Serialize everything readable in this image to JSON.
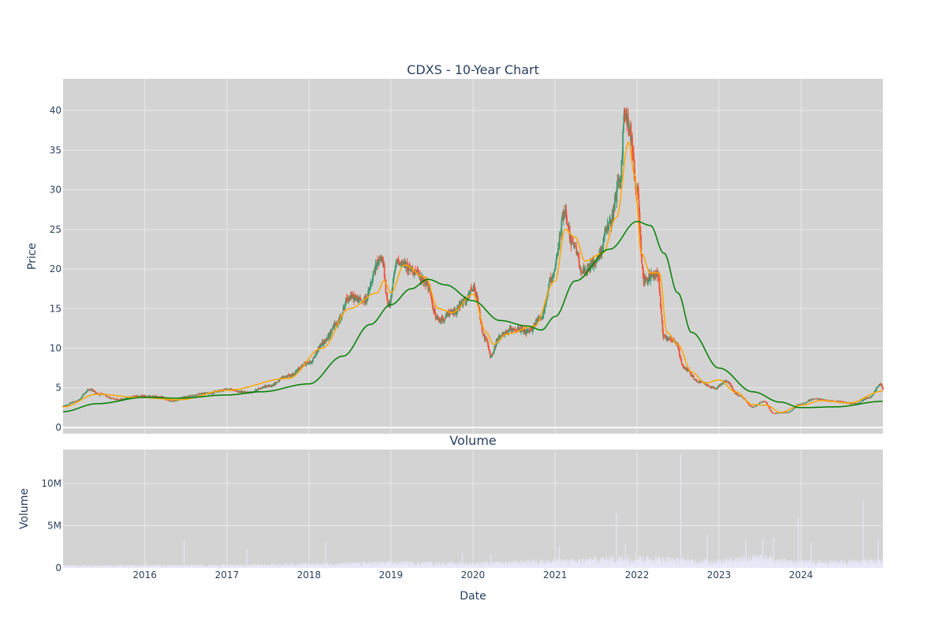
{
  "chart_data": [
    {
      "type": "candlestick",
      "title": "CDXS - 10-Year Chart",
      "xlabel": "",
      "ylabel": "Price",
      "xlim": [
        "2015-01-02",
        "2024-12-31"
      ],
      "ylim": [
        -0.8,
        44
      ],
      "yticks": [
        0,
        5,
        10,
        15,
        20,
        25,
        30,
        35,
        40
      ],
      "grid": true,
      "background": "#d3d3d3",
      "colors": {
        "up": "#3d9970",
        "down": "#ef553b",
        "ma_short": "#ffa500",
        "ma_long": "#008000"
      },
      "price_anchors": [
        [
          "2015-01-02",
          2.7
        ],
        [
          "2015-03-01",
          3.3
        ],
        [
          "2015-05-01",
          4.8
        ],
        [
          "2015-06-15",
          4.2
        ],
        [
          "2015-09-01",
          3.5
        ],
        [
          "2015-12-01",
          4.0
        ],
        [
          "2016-03-01",
          3.9
        ],
        [
          "2016-05-01",
          3.3
        ],
        [
          "2016-07-01",
          3.9
        ],
        [
          "2016-10-01",
          4.3
        ],
        [
          "2017-01-01",
          4.8
        ],
        [
          "2017-04-01",
          4.4
        ],
        [
          "2017-07-01",
          5.2
        ],
        [
          "2017-10-01",
          6.5
        ],
        [
          "2018-01-01",
          8.2
        ],
        [
          "2018-03-10",
          10.8
        ],
        [
          "2018-05-01",
          13.0
        ],
        [
          "2018-07-01",
          16.5
        ],
        [
          "2018-09-01",
          16.0
        ],
        [
          "2018-11-20",
          21.5
        ],
        [
          "2018-12-20",
          15.5
        ],
        [
          "2019-02-01",
          21.0
        ],
        [
          "2019-04-01",
          20.0
        ],
        [
          "2019-06-01",
          18.5
        ],
        [
          "2019-08-01",
          13.5
        ],
        [
          "2019-10-01",
          14.5
        ],
        [
          "2019-12-01",
          16.0
        ],
        [
          "2020-01-01",
          17.5
        ],
        [
          "2020-03-01",
          11.0
        ],
        [
          "2020-03-20",
          9.0
        ],
        [
          "2020-05-01",
          11.5
        ],
        [
          "2020-07-01",
          12.5
        ],
        [
          "2020-09-01",
          12.0
        ],
        [
          "2020-11-01",
          14.0
        ],
        [
          "2020-12-15",
          18.5
        ],
        [
          "2021-02-15",
          27.0
        ],
        [
          "2021-03-20",
          23.0
        ],
        [
          "2021-05-10",
          19.5
        ],
        [
          "2021-07-01",
          21.0
        ],
        [
          "2021-09-01",
          25.5
        ],
        [
          "2021-10-15",
          31.0
        ],
        [
          "2021-11-10",
          40.0
        ],
        [
          "2021-12-01",
          37.0
        ],
        [
          "2021-12-31",
          30.0
        ],
        [
          "2022-02-01",
          18.5
        ],
        [
          "2022-03-01",
          19.0
        ],
        [
          "2022-04-01",
          19.5
        ],
        [
          "2022-05-01",
          11.5
        ],
        [
          "2022-06-15",
          11.0
        ],
        [
          "2022-08-01",
          7.5
        ],
        [
          "2022-10-01",
          5.8
        ],
        [
          "2022-12-15",
          5.0
        ],
        [
          "2023-02-01",
          5.8
        ],
        [
          "2023-04-01",
          4.0
        ],
        [
          "2023-06-01",
          2.6
        ],
        [
          "2023-07-20",
          3.3
        ],
        [
          "2023-09-01",
          1.8
        ],
        [
          "2023-11-01",
          1.9
        ],
        [
          "2024-01-01",
          3.0
        ],
        [
          "2024-03-01",
          3.6
        ],
        [
          "2024-06-01",
          3.3
        ],
        [
          "2024-09-01",
          3.0
        ],
        [
          "2024-11-01",
          3.8
        ],
        [
          "2024-12-20",
          5.5
        ],
        [
          "2024-12-31",
          4.8
        ]
      ],
      "ma_short_anchors": [
        [
          "2015-01-02",
          2.6
        ],
        [
          "2015-06-01",
          4.2
        ],
        [
          "2015-12-01",
          3.8
        ],
        [
          "2016-06-01",
          3.5
        ],
        [
          "2017-01-01",
          4.7
        ],
        [
          "2017-10-01",
          6.2
        ],
        [
          "2018-03-01",
          10.0
        ],
        [
          "2018-07-01",
          15.0
        ],
        [
          "2018-11-01",
          17.0
        ],
        [
          "2018-12-01",
          18.5
        ],
        [
          "2019-01-01",
          17.0
        ],
        [
          "2019-03-01",
          20.5
        ],
        [
          "2019-06-01",
          19.0
        ],
        [
          "2019-08-01",
          15.0
        ],
        [
          "2019-10-01",
          14.5
        ],
        [
          "2020-01-01",
          16.8
        ],
        [
          "2020-03-01",
          12.0
        ],
        [
          "2020-04-01",
          10.5
        ],
        [
          "2020-06-01",
          11.8
        ],
        [
          "2020-10-01",
          12.8
        ],
        [
          "2021-01-01",
          18.5
        ],
        [
          "2021-02-15",
          25.0
        ],
        [
          "2021-04-01",
          24.0
        ],
        [
          "2021-05-15",
          21.0
        ],
        [
          "2021-08-01",
          22.0
        ],
        [
          "2021-10-01",
          26.5
        ],
        [
          "2021-11-25",
          36.0
        ],
        [
          "2021-12-20",
          32.0
        ],
        [
          "2022-01-20",
          22.0
        ],
        [
          "2022-03-01",
          19.5
        ],
        [
          "2022-04-10",
          19.5
        ],
        [
          "2022-05-15",
          12.0
        ],
        [
          "2022-07-01",
          10.5
        ],
        [
          "2022-09-01",
          7.0
        ],
        [
          "2022-11-01",
          5.6
        ],
        [
          "2023-01-01",
          6.0
        ],
        [
          "2023-03-15",
          4.5
        ],
        [
          "2023-06-01",
          2.9
        ],
        [
          "2023-08-01",
          2.8
        ],
        [
          "2023-10-01",
          1.9
        ],
        [
          "2024-01-01",
          2.8
        ],
        [
          "2024-04-01",
          3.4
        ],
        [
          "2024-08-01",
          3.1
        ],
        [
          "2024-12-31",
          4.6
        ]
      ],
      "ma_long_anchors": [
        [
          "2015-01-02",
          2.0
        ],
        [
          "2015-06-01",
          3.0
        ],
        [
          "2016-01-01",
          3.8
        ],
        [
          "2016-06-01",
          3.7
        ],
        [
          "2017-01-01",
          4.1
        ],
        [
          "2017-06-01",
          4.5
        ],
        [
          "2018-01-01",
          5.5
        ],
        [
          "2018-06-01",
          9.0
        ],
        [
          "2018-10-01",
          13.0
        ],
        [
          "2019-01-01",
          15.5
        ],
        [
          "2019-04-01",
          17.5
        ],
        [
          "2019-06-15",
          18.7
        ],
        [
          "2019-09-01",
          18.0
        ],
        [
          "2020-01-01",
          16.0
        ],
        [
          "2020-05-01",
          13.5
        ],
        [
          "2020-09-01",
          12.8
        ],
        [
          "2020-11-01",
          12.3
        ],
        [
          "2021-01-01",
          14.0
        ],
        [
          "2021-04-01",
          18.5
        ],
        [
          "2021-09-01",
          22.5
        ],
        [
          "2022-01-01",
          26.0
        ],
        [
          "2022-03-01",
          25.5
        ],
        [
          "2022-05-01",
          22.0
        ],
        [
          "2022-07-01",
          17.0
        ],
        [
          "2022-09-01",
          12.0
        ],
        [
          "2023-01-01",
          7.5
        ],
        [
          "2023-06-01",
          4.5
        ],
        [
          "2023-10-01",
          3.2
        ],
        [
          "2024-01-01",
          2.5
        ],
        [
          "2024-06-01",
          2.6
        ],
        [
          "2024-12-31",
          3.3
        ]
      ]
    },
    {
      "type": "bar",
      "title": "Volume",
      "xlabel": "Date",
      "ylabel": "Volume",
      "xlim": [
        "2015-01-02",
        "2024-12-31"
      ],
      "ylim": [
        0,
        14000000
      ],
      "yticks": [
        0,
        5000000,
        10000000
      ],
      "ytick_labels": [
        "0",
        "5M",
        "10M"
      ],
      "xticks": [
        "2016",
        "2017",
        "2018",
        "2019",
        "2020",
        "2021",
        "2022",
        "2023",
        "2024"
      ],
      "grid": true,
      "background": "#d3d3d3",
      "bar_color": "#e8e8f8",
      "base_volume_anchors": [
        [
          "2015-01-02",
          300000
        ],
        [
          "2017-01-01",
          350000
        ],
        [
          "2018-01-01",
          500000
        ],
        [
          "2019-01-01",
          700000
        ],
        [
          "2020-01-01",
          600000
        ],
        [
          "2021-01-01",
          900000
        ],
        [
          "2022-01-01",
          1300000
        ],
        [
          "2022-12-01",
          900000
        ],
        [
          "2023-06-01",
          1400000
        ],
        [
          "2024-01-01",
          800000
        ],
        [
          "2024-12-31",
          900000
        ]
      ],
      "volume_spikes": [
        [
          "2016-06-24",
          3300000
        ],
        [
          "2017-03-31",
          2200000
        ],
        [
          "2018-03-16",
          3000000
        ],
        [
          "2019-11-15",
          1800000
        ],
        [
          "2020-03-20",
          1700000
        ],
        [
          "2021-01-20",
          2600000
        ],
        [
          "2021-10-01",
          6500000
        ],
        [
          "2021-11-10",
          2800000
        ],
        [
          "2022-07-15",
          13500000
        ],
        [
          "2022-11-10",
          4000000
        ],
        [
          "2023-05-01",
          3200000
        ],
        [
          "2023-07-15",
          3400000
        ],
        [
          "2023-09-01",
          3500000
        ],
        [
          "2023-12-20",
          6000000
        ],
        [
          "2024-02-15",
          3000000
        ],
        [
          "2024-10-04",
          8000000
        ],
        [
          "2024-12-10",
          3300000
        ]
      ]
    }
  ]
}
